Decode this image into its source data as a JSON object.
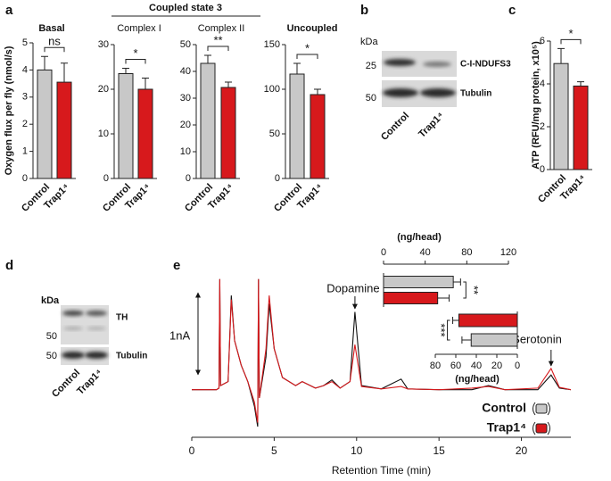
{
  "panel_labels": [
    "a",
    "b",
    "c",
    "d",
    "e"
  ],
  "panel_a_group": "Coupled state 3",
  "blot_b": {
    "unit": "kDa",
    "markers": [
      25,
      50
    ],
    "bands": [
      "C-I-NDUFS3",
      "Tubulin"
    ],
    "lanes": [
      "Control",
      "Trap1⁴"
    ]
  },
  "blot_d": {
    "unit": "kDa",
    "markers": [
      50,
      50
    ],
    "bands": [
      "TH",
      "Tubulin"
    ],
    "lanes": [
      "Control",
      "Trap1⁴"
    ]
  },
  "chart_data": [
    {
      "type": "bar",
      "title": "Basal",
      "ylabel": "Oxygen flux per fly (nmol/s)",
      "categories": [
        "Control",
        "Trap1⁴"
      ],
      "values": [
        4.0,
        3.55
      ],
      "errors": [
        0.5,
        0.7
      ],
      "colors": [
        "#c8c8c8",
        "#d7191c"
      ],
      "ylim": [
        0,
        5
      ],
      "yticks": [
        0,
        1,
        2,
        3,
        4,
        5
      ],
      "significance": {
        "label": "ns",
        "color": "#e41a1c"
      }
    },
    {
      "type": "bar",
      "title": "Complex I",
      "categories": [
        "Control",
        "Trap1⁴"
      ],
      "values": [
        23.5,
        20
      ],
      "errors": [
        1.2,
        2.5
      ],
      "colors": [
        "#c8c8c8",
        "#d7191c"
      ],
      "ylim": [
        0,
        30
      ],
      "yticks": [
        0,
        10,
        20,
        30
      ],
      "significance": {
        "label": "*",
        "color": "#e41a1c"
      }
    },
    {
      "type": "bar",
      "title": "Complex II",
      "categories": [
        "Control",
        "Trap1⁴"
      ],
      "values": [
        43,
        34
      ],
      "errors": [
        3,
        2
      ],
      "colors": [
        "#c8c8c8",
        "#d7191c"
      ],
      "ylim": [
        0,
        50
      ],
      "yticks": [
        0,
        10,
        20,
        30,
        40,
        50
      ],
      "significance": {
        "label": "**",
        "color": "#e41a1c"
      }
    },
    {
      "type": "bar",
      "title": "Uncoupled",
      "categories": [
        "Control",
        "Trap1⁴"
      ],
      "values": [
        117,
        94
      ],
      "errors": [
        12,
        6
      ],
      "colors": [
        "#c8c8c8",
        "#d7191c"
      ],
      "ylim": [
        0,
        150
      ],
      "yticks": [
        0,
        50,
        100,
        150
      ],
      "significance": {
        "label": "*",
        "color": "#e41a1c"
      }
    },
    {
      "type": "bar",
      "ylabel": "ATP (RFU/mg protein, x10⁵)",
      "categories": [
        "Control",
        "Trap1⁴"
      ],
      "values": [
        4.95,
        3.9
      ],
      "errors": [
        0.7,
        0.2
      ],
      "colors": [
        "#c8c8c8",
        "#d7191c"
      ],
      "ylim": [
        0,
        6
      ],
      "yticks": [
        0,
        2,
        4,
        6
      ],
      "significance": {
        "label": "*",
        "color": "#e41a1c"
      }
    },
    {
      "type": "line",
      "xlabel": "Retention Time (min)",
      "xlim": [
        0,
        23
      ],
      "xticks": [
        0,
        5,
        10,
        15,
        20
      ],
      "ylim": [
        -0.58,
        1.5
      ],
      "scale_bar": {
        "value": 1,
        "label": "1nA"
      },
      "annotations": [
        {
          "text": "Dopamine",
          "x": 9.9
        },
        {
          "text": "Serotonin",
          "x": 21.8
        }
      ],
      "x": [
        0,
        1.5,
        1.65,
        1.7,
        1.75,
        2.2,
        2.4,
        2.6,
        3.0,
        3.4,
        3.8,
        4.0,
        4.05,
        4.1,
        4.5,
        4.7,
        5.0,
        5.5,
        6.3,
        6.7,
        7.5,
        8.0,
        8.5,
        9.0,
        9.6,
        9.9,
        10.3,
        11.5,
        12.7,
        13.1,
        15,
        17,
        18,
        19,
        21,
        21.8,
        22.3,
        23
      ],
      "series": [
        {
          "name": "Control",
          "color": "#111111",
          "marker_color": "#c8c8c8",
          "values": [
            0,
            0,
            0.02,
            1.35,
            0.05,
            0.1,
            1.15,
            0.6,
            0.3,
            0.1,
            -0.2,
            -0.45,
            1.35,
            -0.1,
            0.4,
            1.05,
            0.5,
            0.15,
            0.05,
            0.1,
            0.02,
            0.05,
            0.12,
            0.02,
            0.1,
            0.95,
            0.05,
            0.01,
            0.13,
            0.01,
            0,
            0,
            0.05,
            0,
            0,
            0.18,
            0.02,
            0
          ]
        },
        {
          "name": "Trap1⁴",
          "color": "#d7191c",
          "marker_color": "#d7191c",
          "values": [
            0,
            0,
            0.02,
            1.35,
            0.05,
            0.1,
            1.1,
            0.6,
            0.3,
            0.1,
            -0.15,
            -0.4,
            1.35,
            -0.1,
            0.5,
            1.15,
            0.5,
            0.15,
            0.05,
            0.1,
            0.02,
            0.05,
            0.1,
            0.02,
            0.1,
            0.55,
            0.04,
            0.01,
            0.04,
            0.01,
            0,
            0.02,
            0.04,
            0,
            0.02,
            0.26,
            0.03,
            0
          ]
        }
      ]
    },
    {
      "type": "barh",
      "xlabel": "(ng/head)",
      "xlim": [
        0,
        120
      ],
      "xticks": [
        0,
        40,
        80,
        120
      ],
      "values": [
        67,
        52
      ],
      "errors": [
        7,
        11
      ],
      "colors": [
        "#c8c8c8",
        "#d7191c"
      ],
      "significance": {
        "label": "**",
        "color": "#e41a1c"
      }
    },
    {
      "type": "barh",
      "xlabel": "(ng/head)",
      "xlim": [
        80,
        0
      ],
      "xticks": [
        80,
        60,
        40,
        20,
        0
      ],
      "values": [
        57,
        45
      ],
      "errors": [
        6,
        9
      ],
      "colors": [
        "#d7191c",
        "#c8c8c8"
      ],
      "significance": {
        "label": "***",
        "color": "#e41a1c"
      }
    }
  ]
}
